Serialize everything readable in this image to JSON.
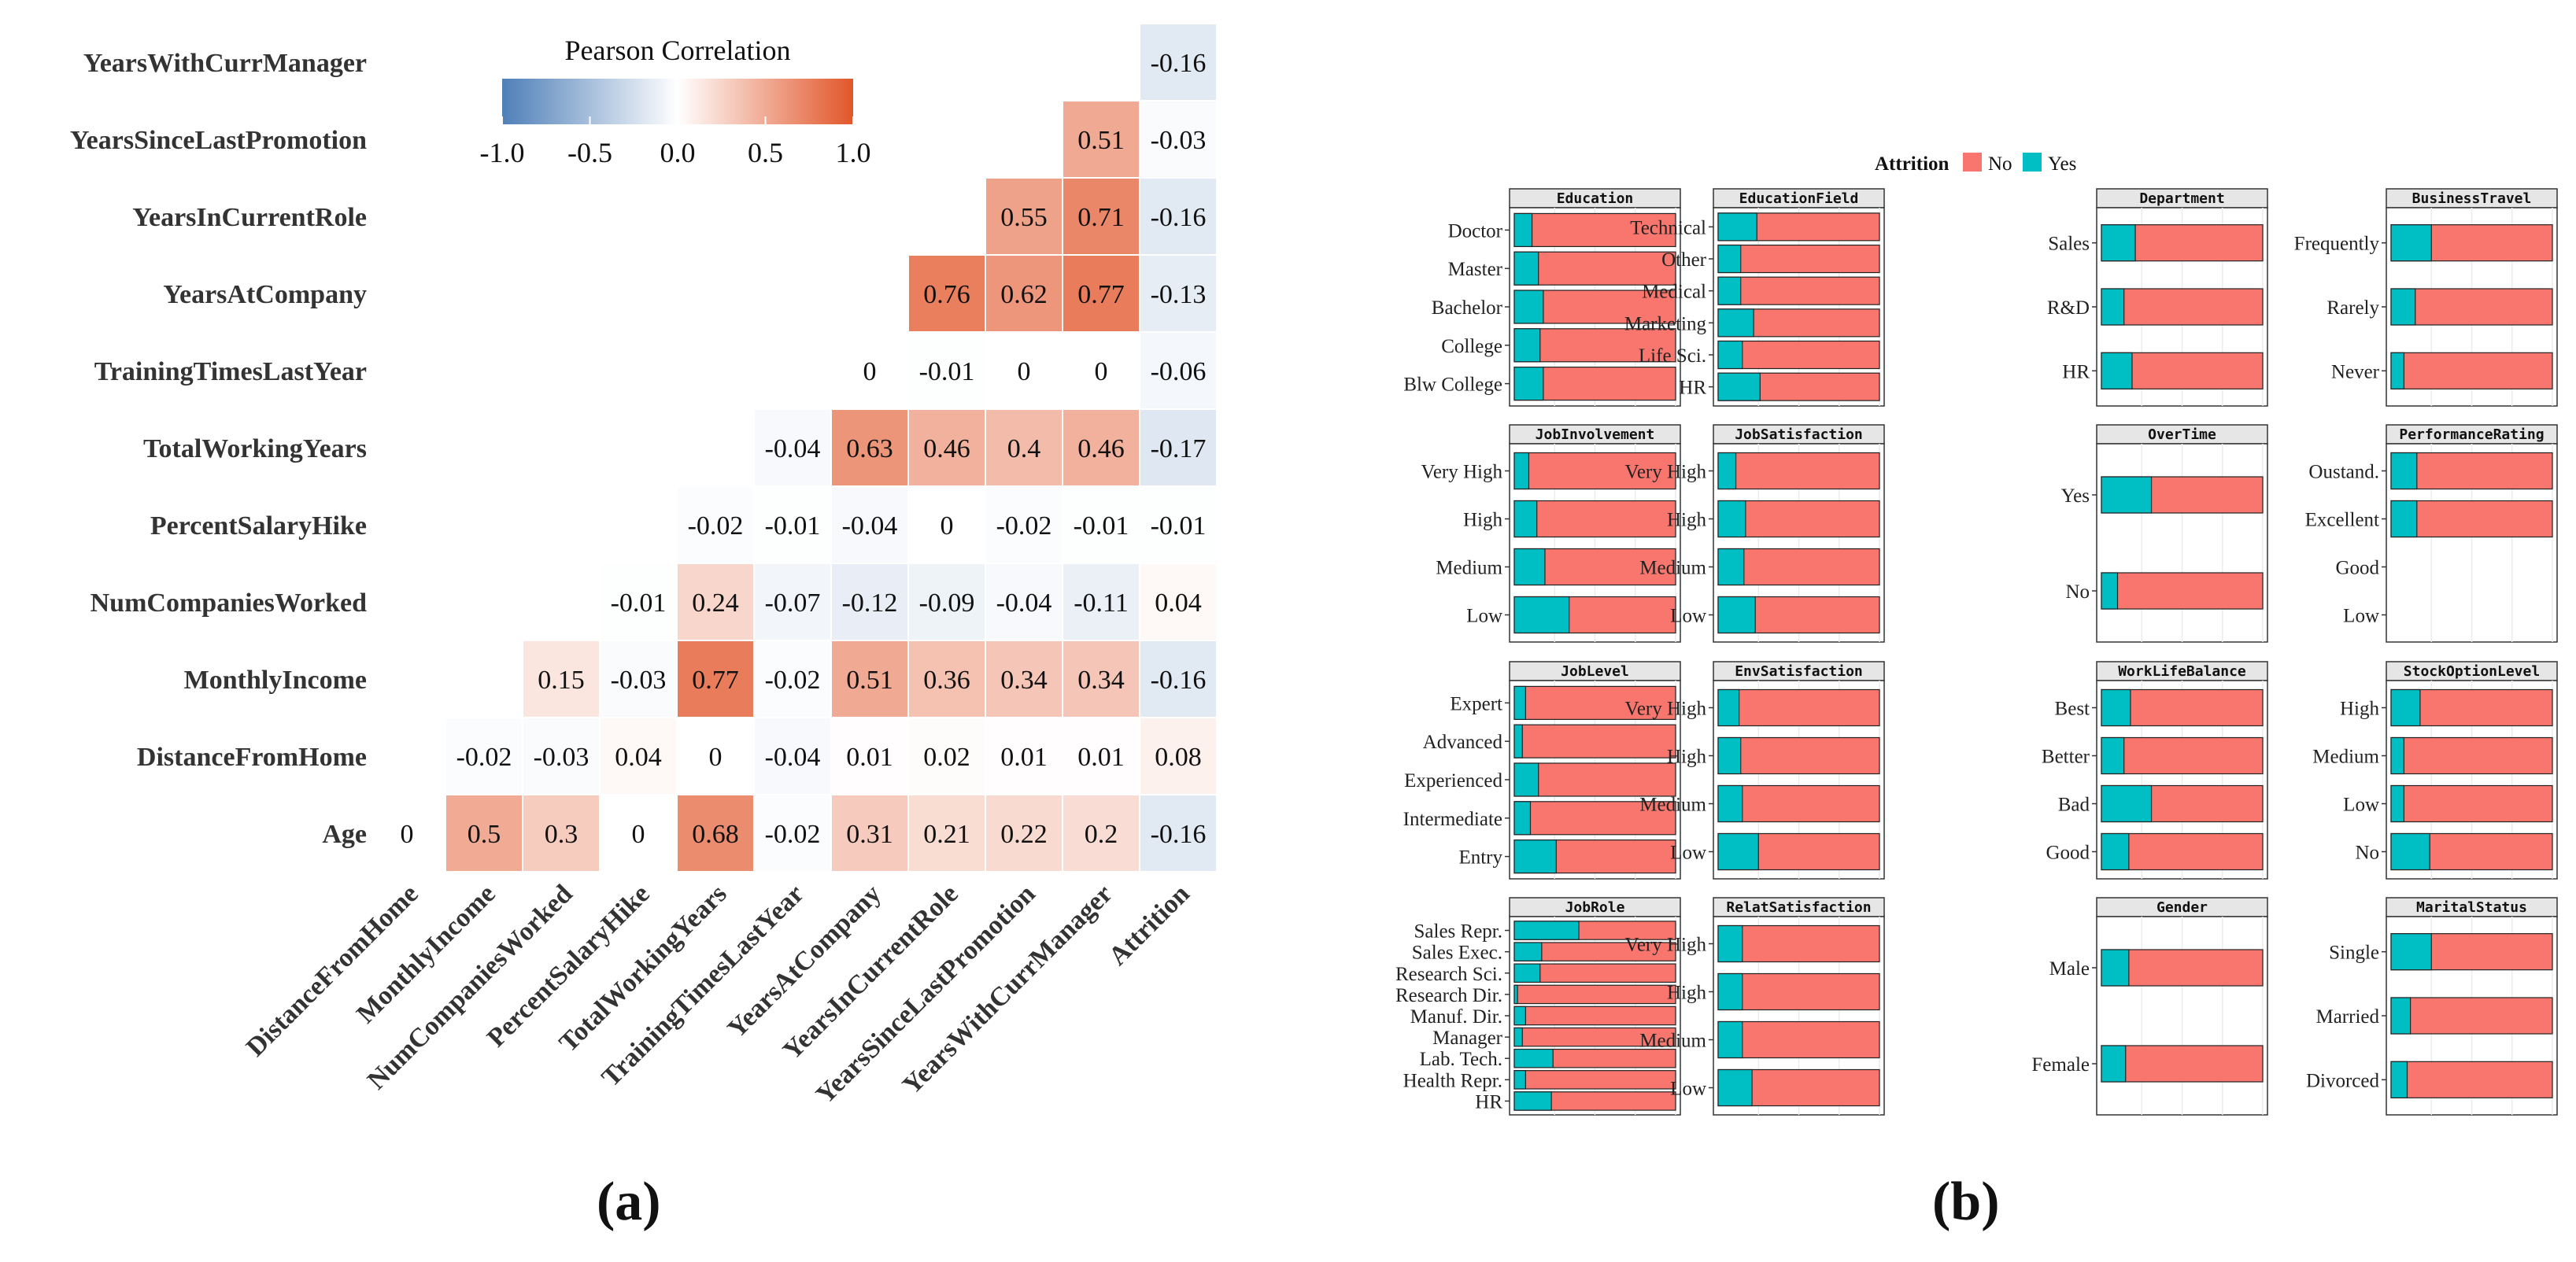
{
  "panel_a": {
    "caption": "(a)",
    "chart_data": {
      "type": "heatmap",
      "title": "",
      "legend": {
        "title": "Pearson Correlation",
        "ticks": [
          "-1.0",
          "-0.5",
          "0.0",
          "0.5",
          "1.0"
        ],
        "range": [
          -1,
          1
        ],
        "placement": "top"
      },
      "columns": [
        "DistanceFromHome",
        "MonthlyIncome",
        "NumCompaniesWorked",
        "PercentSalaryHike",
        "TotalWorkingYears",
        "TrainingTimesLastYear",
        "YearsAtCompany",
        "YearsInCurrentRole",
        "YearsSinceLastPromotion",
        "YearsWithCurrManager",
        "Attrition"
      ],
      "rows": [
        "YearsWithCurrManager",
        "YearsSinceLastPromotion",
        "YearsInCurrentRole",
        "YearsAtCompany",
        "TrainingTimesLastYear",
        "TotalWorkingYears",
        "PercentSalaryHike",
        "NumCompaniesWorked",
        "MonthlyIncome",
        "DistanceFromHome",
        "Age"
      ],
      "cells": [
        {
          "row": 0,
          "col": 10,
          "value": "-0.16"
        },
        {
          "row": 1,
          "col": 9,
          "value": "0.51"
        },
        {
          "row": 1,
          "col": 10,
          "value": "-0.03"
        },
        {
          "row": 2,
          "col": 8,
          "value": "0.55"
        },
        {
          "row": 2,
          "col": 9,
          "value": "0.71"
        },
        {
          "row": 2,
          "col": 10,
          "value": "-0.16"
        },
        {
          "row": 3,
          "col": 7,
          "value": "0.76"
        },
        {
          "row": 3,
          "col": 8,
          "value": "0.62"
        },
        {
          "row": 3,
          "col": 9,
          "value": "0.77"
        },
        {
          "row": 3,
          "col": 10,
          "value": "-0.13"
        },
        {
          "row": 4,
          "col": 6,
          "value": "0"
        },
        {
          "row": 4,
          "col": 7,
          "value": "-0.01"
        },
        {
          "row": 4,
          "col": 8,
          "value": "0"
        },
        {
          "row": 4,
          "col": 9,
          "value": "0"
        },
        {
          "row": 4,
          "col": 10,
          "value": "-0.06"
        },
        {
          "row": 5,
          "col": 5,
          "value": "-0.04"
        },
        {
          "row": 5,
          "col": 6,
          "value": "0.63"
        },
        {
          "row": 5,
          "col": 7,
          "value": "0.46"
        },
        {
          "row": 5,
          "col": 8,
          "value": "0.4"
        },
        {
          "row": 5,
          "col": 9,
          "value": "0.46"
        },
        {
          "row": 5,
          "col": 10,
          "value": "-0.17"
        },
        {
          "row": 6,
          "col": 4,
          "value": "-0.02"
        },
        {
          "row": 6,
          "col": 5,
          "value": "-0.01"
        },
        {
          "row": 6,
          "col": 6,
          "value": "-0.04"
        },
        {
          "row": 6,
          "col": 7,
          "value": "0"
        },
        {
          "row": 6,
          "col": 8,
          "value": "-0.02"
        },
        {
          "row": 6,
          "col": 9,
          "value": "-0.01"
        },
        {
          "row": 6,
          "col": 10,
          "value": "-0.01"
        },
        {
          "row": 7,
          "col": 3,
          "value": "-0.01"
        },
        {
          "row": 7,
          "col": 4,
          "value": "0.24"
        },
        {
          "row": 7,
          "col": 5,
          "value": "-0.07"
        },
        {
          "row": 7,
          "col": 6,
          "value": "-0.12"
        },
        {
          "row": 7,
          "col": 7,
          "value": "-0.09"
        },
        {
          "row": 7,
          "col": 8,
          "value": "-0.04"
        },
        {
          "row": 7,
          "col": 9,
          "value": "-0.11"
        },
        {
          "row": 7,
          "col": 10,
          "value": "0.04"
        },
        {
          "row": 8,
          "col": 2,
          "value": "0.15"
        },
        {
          "row": 8,
          "col": 3,
          "value": "-0.03"
        },
        {
          "row": 8,
          "col": 4,
          "value": "0.77"
        },
        {
          "row": 8,
          "col": 5,
          "value": "-0.02"
        },
        {
          "row": 8,
          "col": 6,
          "value": "0.51"
        },
        {
          "row": 8,
          "col": 7,
          "value": "0.36"
        },
        {
          "row": 8,
          "col": 8,
          "value": "0.34"
        },
        {
          "row": 8,
          "col": 9,
          "value": "0.34"
        },
        {
          "row": 8,
          "col": 10,
          "value": "-0.16"
        },
        {
          "row": 9,
          "col": 1,
          "value": "-0.02"
        },
        {
          "row": 9,
          "col": 2,
          "value": "-0.03"
        },
        {
          "row": 9,
          "col": 3,
          "value": "0.04"
        },
        {
          "row": 9,
          "col": 4,
          "value": "0"
        },
        {
          "row": 9,
          "col": 5,
          "value": "-0.04"
        },
        {
          "row": 9,
          "col": 6,
          "value": "0.01"
        },
        {
          "row": 9,
          "col": 7,
          "value": "0.02"
        },
        {
          "row": 9,
          "col": 8,
          "value": "0.01"
        },
        {
          "row": 9,
          "col": 9,
          "value": "0.01"
        },
        {
          "row": 9,
          "col": 10,
          "value": "0.08"
        },
        {
          "row": 10,
          "col": 0,
          "value": "0"
        },
        {
          "row": 10,
          "col": 1,
          "value": "0.5"
        },
        {
          "row": 10,
          "col": 2,
          "value": "0.3"
        },
        {
          "row": 10,
          "col": 3,
          "value": "0"
        },
        {
          "row": 10,
          "col": 4,
          "value": "0.68"
        },
        {
          "row": 10,
          "col": 5,
          "value": "-0.02"
        },
        {
          "row": 10,
          "col": 6,
          "value": "0.31"
        },
        {
          "row": 10,
          "col": 7,
          "value": "0.21"
        },
        {
          "row": 10,
          "col": 8,
          "value": "0.22"
        },
        {
          "row": 10,
          "col": 9,
          "value": "0.2"
        },
        {
          "row": 10,
          "col": 10,
          "value": "-0.16"
        }
      ]
    }
  },
  "panel_b": {
    "caption": "(b)",
    "chart_data": {
      "type": "bar",
      "orientation": "horizontal",
      "stacked_proportion": true,
      "legend": {
        "title": "Attrition",
        "entries": [
          {
            "name": "No",
            "color": "#F8766D"
          },
          {
            "name": "Yes",
            "color": "#00BFC4"
          }
        ],
        "placement": "top"
      },
      "xlim": [
        0,
        1
      ],
      "facets": [
        {
          "title": "Education",
          "categories": [
            "Doctor",
            "Master",
            "Bachelor",
            "College",
            "Blw College"
          ],
          "yes_share": [
            0.11,
            0.15,
            0.18,
            0.16,
            0.18
          ]
        },
        {
          "title": "EducationField",
          "categories": [
            "Technical",
            "Other",
            "Medical",
            "Marketing",
            "Life Sci.",
            "HR"
          ],
          "yes_share": [
            0.24,
            0.14,
            0.14,
            0.22,
            0.15,
            0.26
          ]
        },
        {
          "title": "Department",
          "categories": [
            "Sales",
            "R&D",
            "HR"
          ],
          "yes_share": [
            0.21,
            0.14,
            0.19
          ]
        },
        {
          "title": "BusinessTravel",
          "categories": [
            "Frequently",
            "Rarely",
            "Never"
          ],
          "yes_share": [
            0.25,
            0.15,
            0.08
          ]
        },
        {
          "title": "JobInvolvement",
          "categories": [
            "Very High",
            "High",
            "Medium",
            "Low"
          ],
          "yes_share": [
            0.09,
            0.14,
            0.19,
            0.34
          ]
        },
        {
          "title": "JobSatisfaction",
          "categories": [
            "Very High",
            "High",
            "Medium",
            "Low"
          ],
          "yes_share": [
            0.11,
            0.17,
            0.16,
            0.23
          ]
        },
        {
          "title": "OverTime",
          "categories": [
            "Yes",
            "No"
          ],
          "yes_share": [
            0.31,
            0.1
          ]
        },
        {
          "title": "PerformanceRating",
          "categories": [
            "Oustand.",
            "Excellent",
            "Good",
            "Low"
          ],
          "yes_share": [
            0.16,
            0.16,
            0,
            0
          ]
        },
        {
          "title": "JobLevel",
          "categories": [
            "Expert",
            "Advanced",
            "Experienced",
            "Intermediate",
            "Entry"
          ],
          "yes_share": [
            0.07,
            0.05,
            0.15,
            0.1,
            0.26
          ]
        },
        {
          "title": "EnvSatisfaction",
          "categories": [
            "Very High",
            "High",
            "Medium",
            "Low"
          ],
          "yes_share": [
            0.13,
            0.14,
            0.15,
            0.25
          ]
        },
        {
          "title": "WorkLifeBalance",
          "categories": [
            "Best",
            "Better",
            "Bad",
            "Good"
          ],
          "yes_share": [
            0.18,
            0.14,
            0.31,
            0.17
          ]
        },
        {
          "title": "StockOptionLevel",
          "categories": [
            "High",
            "Medium",
            "Low",
            "No"
          ],
          "yes_share": [
            0.18,
            0.08,
            0.08,
            0.24
          ]
        },
        {
          "title": "JobRole",
          "categories": [
            "Sales Repr.",
            "Sales Exec.",
            "Research Sci.",
            "Research Dir.",
            "Manuf. Dir.",
            "Manager",
            "Lab. Tech.",
            "Health Repr.",
            "HR"
          ],
          "yes_share": [
            0.4,
            0.17,
            0.16,
            0.02,
            0.07,
            0.05,
            0.24,
            0.07,
            0.23
          ]
        },
        {
          "title": "RelatSatisfaction",
          "categories": [
            "Very High",
            "High",
            "Medium",
            "Low"
          ],
          "yes_share": [
            0.15,
            0.15,
            0.15,
            0.21
          ]
        },
        {
          "title": "Gender",
          "categories": [
            "Male",
            "Female"
          ],
          "yes_share": [
            0.17,
            0.15
          ]
        },
        {
          "title": "MaritalStatus",
          "categories": [
            "Single",
            "Married",
            "Divorced"
          ],
          "yes_share": [
            0.25,
            0.12,
            0.1
          ]
        }
      ]
    }
  }
}
